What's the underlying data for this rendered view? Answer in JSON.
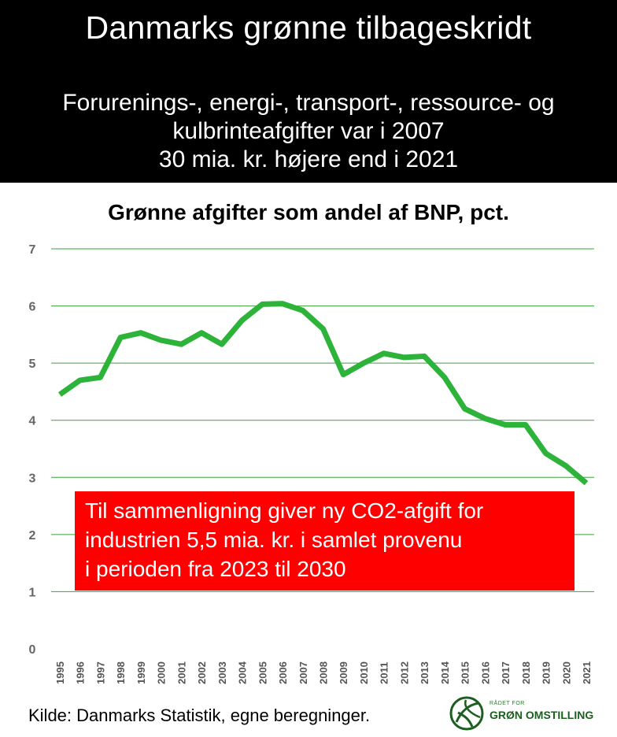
{
  "header": {
    "title": "Danmarks grønne tilbageskridt",
    "subtitle_lines": [
      "Forurenings-, energi-, transport-, ressource- og",
      "kulbrinteafgifter var i 2007",
      "30 mia. kr. højere end i 2021"
    ]
  },
  "annotation": {
    "lines": [
      "Til sammenligning giver ny CO2-afgift for",
      "industrien 5,5 mia. kr. i samlet provenu",
      "i perioden fra 2023 til 2030"
    ]
  },
  "source": "Kilde: Danmarks Statistik, egne beregninger.",
  "logo": {
    "small_text": "RÅDET FOR",
    "big_text": "GRØN OMSTILLING",
    "icon": "leaf-globe-icon"
  },
  "colors": {
    "line": "#2db33a",
    "grid": "#3aa03a",
    "annotation_bg": "#ff0000",
    "header_bg": "#000000"
  },
  "chart_data": {
    "type": "line",
    "title": "Grønne afgifter som andel af BNP, pct.",
    "xlabel": "",
    "ylabel": "",
    "ylim": [
      0,
      7
    ],
    "yticks": [
      0,
      1,
      2,
      3,
      4,
      5,
      6,
      7
    ],
    "grid": true,
    "x": [
      "1995",
      "1996",
      "1997",
      "1998",
      "1999",
      "2000",
      "2001",
      "2002",
      "2003",
      "2004",
      "2005",
      "2006",
      "2007",
      "2008",
      "2009",
      "2010",
      "2011",
      "2012",
      "2013",
      "2014",
      "2015",
      "2016",
      "2017",
      "2018",
      "2019",
      "2020",
      "2021"
    ],
    "series": [
      {
        "name": "Grønne afgifter",
        "values": [
          4.45,
          4.7,
          4.75,
          5.45,
          5.53,
          5.4,
          5.33,
          5.53,
          5.33,
          5.75,
          6.03,
          6.04,
          5.92,
          5.6,
          4.8,
          5.0,
          5.17,
          5.1,
          5.12,
          4.75,
          4.2,
          4.03,
          3.92,
          3.92,
          3.42,
          3.2,
          2.9
        ]
      }
    ]
  }
}
